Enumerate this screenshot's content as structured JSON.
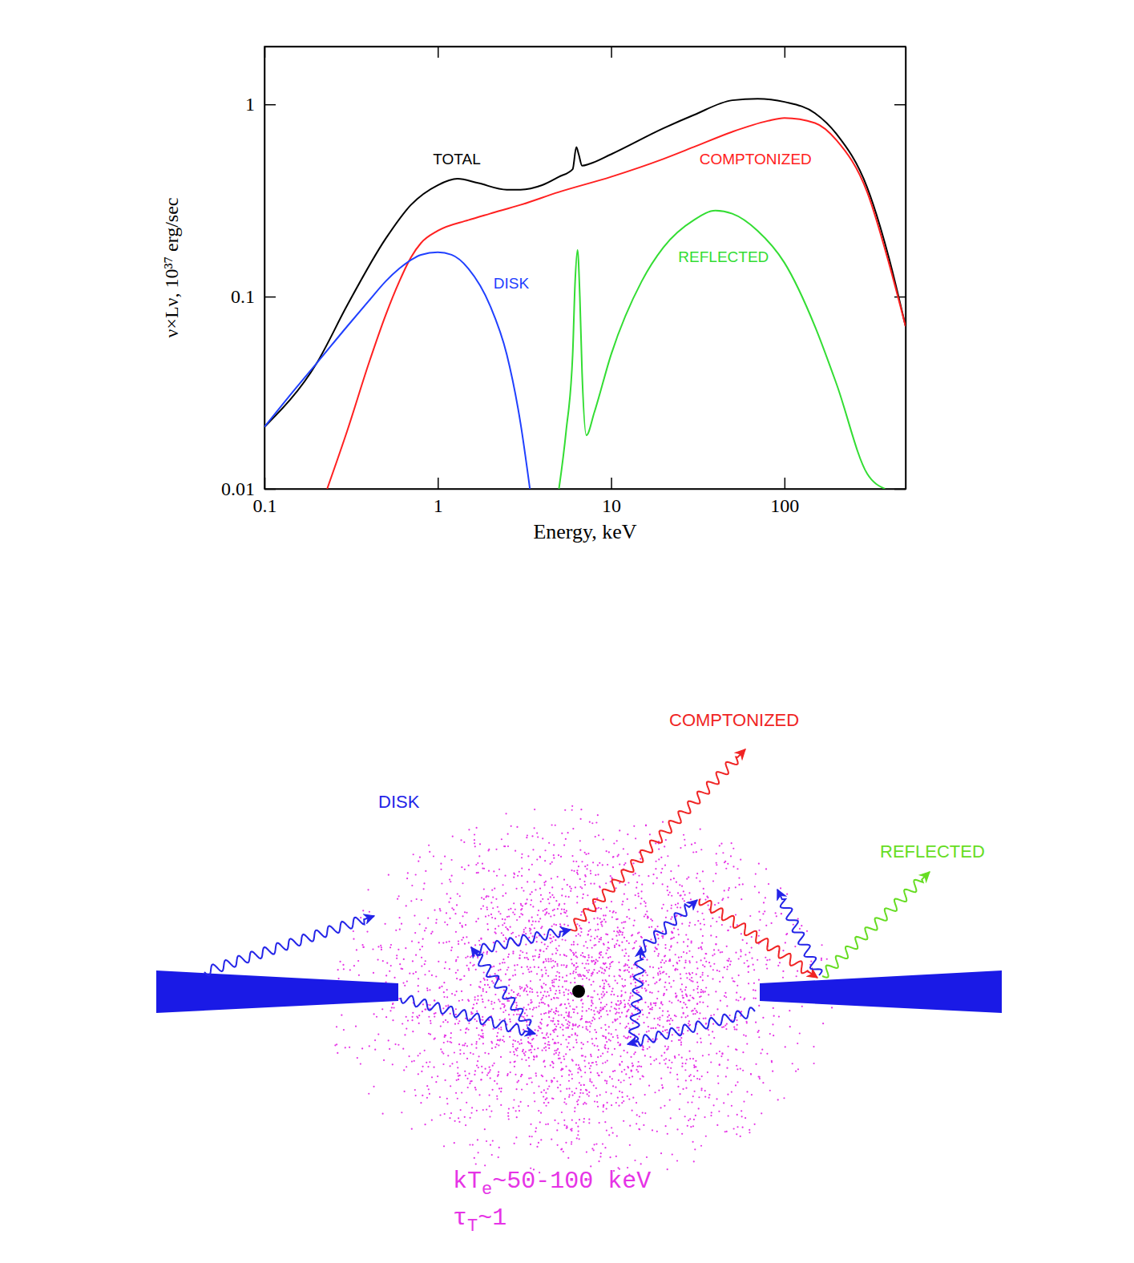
{
  "chart_data": {
    "type": "line",
    "xlabel": "Energy, keV",
    "ylabel": "ν×Lν, 10³⁷ erg/sec",
    "log": true,
    "xlim": [
      0.1,
      500
    ],
    "ylim": [
      0.01,
      2
    ],
    "xticks": [
      0.1,
      1,
      10,
      100
    ],
    "yticks": [
      0.01,
      0.1,
      1
    ],
    "series": [
      {
        "name": "TOTAL",
        "color": "#000000",
        "x": [
          0.1,
          0.2,
          0.3,
          0.5,
          0.7,
          1,
          1.3,
          1.7,
          2.5,
          3,
          4,
          5,
          6,
          6.3,
          6.5,
          6.8,
          7.5,
          10,
          20,
          30,
          50,
          70,
          100,
          150,
          200,
          300,
          400,
          500
        ],
        "values": [
          0.021,
          0.045,
          0.09,
          0.2,
          0.3,
          0.38,
          0.41,
          0.39,
          0.36,
          0.36,
          0.38,
          0.42,
          0.46,
          0.6,
          0.55,
          0.48,
          0.49,
          0.55,
          0.75,
          0.88,
          1.05,
          1.07,
          1.03,
          0.9,
          0.7,
          0.37,
          0.16,
          0.07
        ]
      },
      {
        "name": "COMPTONIZED",
        "color": "#ff2020",
        "x": [
          0.23,
          0.3,
          0.4,
          0.5,
          0.6,
          0.7,
          0.8,
          1,
          1.5,
          2,
          3,
          5,
          10,
          20,
          30,
          50,
          80,
          100,
          150,
          200,
          300,
          400,
          500
        ],
        "values": [
          0.01,
          0.02,
          0.045,
          0.08,
          0.12,
          0.16,
          0.19,
          0.22,
          0.25,
          0.27,
          0.3,
          0.35,
          0.42,
          0.52,
          0.6,
          0.72,
          0.82,
          0.85,
          0.8,
          0.65,
          0.35,
          0.15,
          0.07
        ]
      },
      {
        "name": "DISK",
        "color": "#2040ff",
        "x": [
          0.1,
          0.15,
          0.2,
          0.3,
          0.4,
          0.5,
          0.6,
          0.7,
          0.8,
          1,
          1.2,
          1.5,
          2,
          2.5,
          3,
          3.4
        ],
        "values": [
          0.021,
          0.033,
          0.045,
          0.07,
          0.095,
          0.12,
          0.14,
          0.155,
          0.165,
          0.17,
          0.165,
          0.14,
          0.09,
          0.05,
          0.022,
          0.01
        ]
      },
      {
        "name": "REFLECTED",
        "color": "#33dd33",
        "x": [
          5,
          5.5,
          6,
          6.2,
          6.4,
          6.6,
          6.8,
          7.2,
          8,
          10,
          15,
          20,
          30,
          40,
          50,
          70,
          100,
          150,
          200,
          300,
          380
        ],
        "values": [
          0.01,
          0.02,
          0.05,
          0.12,
          0.175,
          0.1,
          0.04,
          0.019,
          0.025,
          0.05,
          0.12,
          0.18,
          0.25,
          0.28,
          0.27,
          0.22,
          0.15,
          0.07,
          0.035,
          0.012,
          0.01
        ]
      }
    ]
  },
  "diagram": {
    "photons": {
      "disk": "DISK",
      "comptonized": "COMPTONIZED",
      "reflected": "REFLECTED"
    },
    "corona": {
      "temperature": {
        "main": "kT",
        "sub": "e",
        "rest": "~50-100 keV"
      },
      "optical_depth": {
        "main": "τ",
        "sub": "T",
        "rest": "~1"
      }
    }
  }
}
